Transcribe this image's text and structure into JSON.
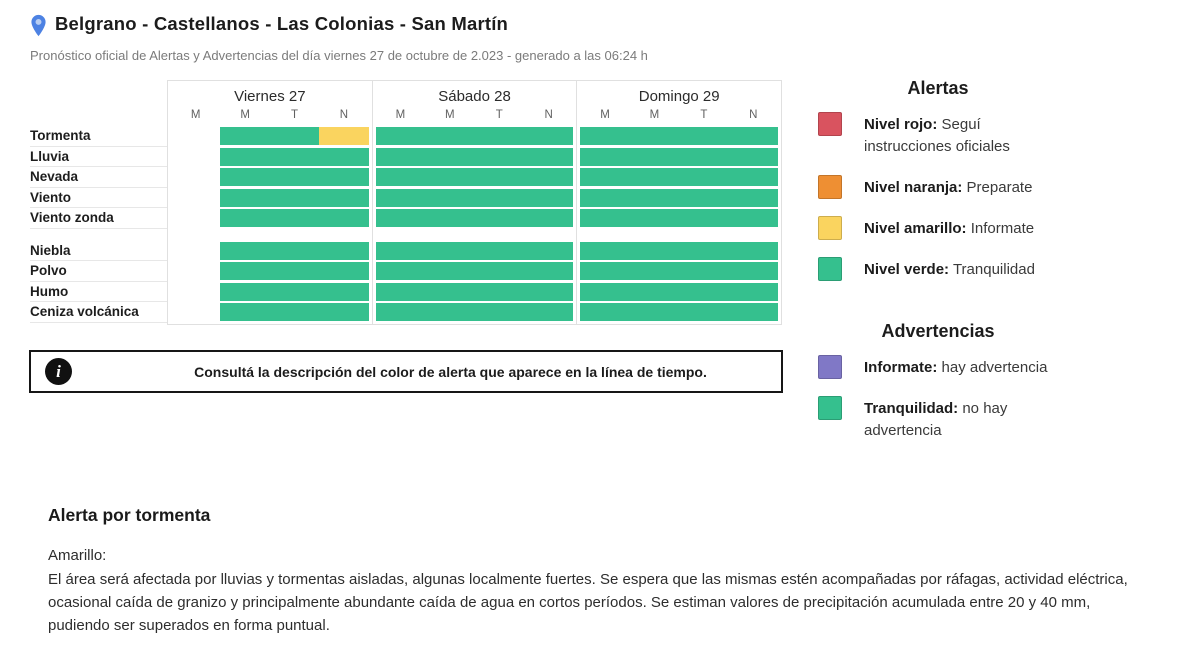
{
  "header": {
    "title": "Belgrano - Castellanos - Las Colonias - San Martín",
    "subtitle": "Pronóstico oficial de Alertas y Advertencias del día viernes 27 de octubre de 2.023 - generado a las 06:24 h"
  },
  "timeline": {
    "days": [
      {
        "label": "Viernes 27",
        "periods": [
          "M",
          "M",
          "T",
          "N"
        ]
      },
      {
        "label": "Sábado 28",
        "periods": [
          "M",
          "M",
          "T",
          "N"
        ]
      },
      {
        "label": "Domingo 29",
        "periods": [
          "M",
          "M",
          "T",
          "N"
        ]
      }
    ],
    "groups": [
      {
        "rows": [
          {
            "label": "Tormenta",
            "days": [
              [
                "none",
                "green",
                "green",
                "yellow"
              ],
              [
                "green",
                "green",
                "green",
                "green"
              ],
              [
                "green",
                "green",
                "green",
                "green"
              ]
            ]
          },
          {
            "label": "Lluvia",
            "days": [
              [
                "none",
                "green",
                "green",
                "green"
              ],
              [
                "green",
                "green",
                "green",
                "green"
              ],
              [
                "green",
                "green",
                "green",
                "green"
              ]
            ]
          },
          {
            "label": "Nevada",
            "days": [
              [
                "none",
                "green",
                "green",
                "green"
              ],
              [
                "green",
                "green",
                "green",
                "green"
              ],
              [
                "green",
                "green",
                "green",
                "green"
              ]
            ]
          },
          {
            "label": "Viento",
            "days": [
              [
                "none",
                "green",
                "green",
                "green"
              ],
              [
                "green",
                "green",
                "green",
                "green"
              ],
              [
                "green",
                "green",
                "green",
                "green"
              ]
            ]
          },
          {
            "label": "Viento zonda",
            "days": [
              [
                "none",
                "green",
                "green",
                "green"
              ],
              [
                "green",
                "green",
                "green",
                "green"
              ],
              [
                "green",
                "green",
                "green",
                "green"
              ]
            ]
          }
        ]
      },
      {
        "rows": [
          {
            "label": "Niebla",
            "days": [
              [
                "none",
                "green",
                "green",
                "green"
              ],
              [
                "green",
                "green",
                "green",
                "green"
              ],
              [
                "green",
                "green",
                "green",
                "green"
              ]
            ]
          },
          {
            "label": "Polvo",
            "days": [
              [
                "none",
                "green",
                "green",
                "green"
              ],
              [
                "green",
                "green",
                "green",
                "green"
              ],
              [
                "green",
                "green",
                "green",
                "green"
              ]
            ]
          },
          {
            "label": "Humo",
            "days": [
              [
                "none",
                "green",
                "green",
                "green"
              ],
              [
                "green",
                "green",
                "green",
                "green"
              ],
              [
                "green",
                "green",
                "green",
                "green"
              ]
            ]
          },
          {
            "label": "Ceniza volcánica",
            "days": [
              [
                "none",
                "green",
                "green",
                "green"
              ],
              [
                "green",
                "green",
                "green",
                "green"
              ],
              [
                "green",
                "green",
                "green",
                "green"
              ]
            ]
          }
        ]
      }
    ]
  },
  "cell_colors": {
    "green": "#35c08e",
    "yellow": "#fad45f",
    "none": "transparent"
  },
  "info_banner": {
    "icon": "i",
    "text": "Consultá la descripción del color de alerta que aparece en la línea de tiempo."
  },
  "legend_alertas": {
    "title": "Alertas",
    "items": [
      {
        "color": "#d9535f",
        "bold": "Nivel rojo:",
        "rest": " Seguí instrucciones oficiales"
      },
      {
        "color": "#ee8f33",
        "bold": "Nivel naranja:",
        "rest": " Preparate"
      },
      {
        "color": "#fad45f",
        "bold": "Nivel amarillo:",
        "rest": " Informate"
      },
      {
        "color": "#35c08e",
        "bold": "Nivel verde:",
        "rest": " Tranquilidad"
      }
    ]
  },
  "legend_advertencias": {
    "title": "Advertencias",
    "items": [
      {
        "color": "#8078c6",
        "bold": "Informate:",
        "rest": " hay advertencia"
      },
      {
        "color": "#35c08e",
        "bold": "Tranquilidad:",
        "rest": " no hay advertencia"
      }
    ]
  },
  "detail": {
    "heading": "Alerta por tormenta",
    "level_label": "Amarillo:",
    "description": "El área será afectada por lluvias y tormentas aisladas, algunas localmente fuertes. Se espera que las mismas estén acompañadas por ráfagas, actividad eléctrica, ocasional caída de granizo y principalmente abundante caída de agua en cortos períodos. Se estiman valores de precipitación acumulada entre 20 y 40 mm, pudiendo ser superados en forma puntual."
  },
  "accent_colors": {
    "pin_blue": "#4d82e3",
    "pin_inner": "#b9cef2"
  }
}
